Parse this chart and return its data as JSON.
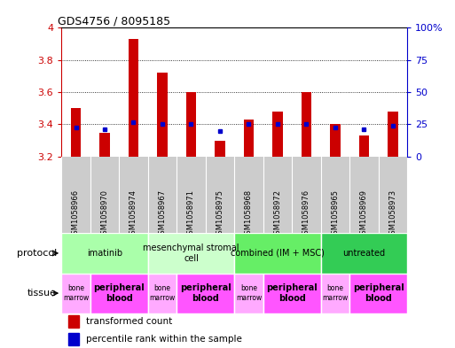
{
  "title": "GDS4756 / 8095185",
  "samples": [
    "GSM1058966",
    "GSM1058970",
    "GSM1058974",
    "GSM1058967",
    "GSM1058971",
    "GSM1058975",
    "GSM1058968",
    "GSM1058972",
    "GSM1058976",
    "GSM1058965",
    "GSM1058969",
    "GSM1058973"
  ],
  "transformed_counts": [
    3.5,
    3.35,
    3.93,
    3.72,
    3.6,
    3.3,
    3.43,
    3.48,
    3.6,
    3.4,
    3.33,
    3.48
  ],
  "percentile_ranks": [
    3.38,
    3.37,
    3.415,
    3.4,
    3.4,
    3.36,
    3.4,
    3.4,
    3.4,
    3.38,
    3.37,
    3.39
  ],
  "ylim": [
    3.2,
    4.0
  ],
  "yticks_left": [
    3.2,
    3.4,
    3.6,
    3.8,
    4.0
  ],
  "ytick_left_labels": [
    "3.2",
    "3.4",
    "3.6",
    "3.8",
    "4"
  ],
  "yticks_right_pct": [
    0,
    25,
    50,
    75,
    100
  ],
  "ytick_right_labels": [
    "0",
    "25",
    "50",
    "75",
    "100%"
  ],
  "bar_color": "#cc0000",
  "dot_color": "#0000cc",
  "bar_width": 0.35,
  "protocols": [
    {
      "label": "imatinib",
      "start": 0,
      "end": 3,
      "color": "#aaffaa"
    },
    {
      "label": "mesenchymal stromal\ncell",
      "start": 3,
      "end": 6,
      "color": "#ccffcc"
    },
    {
      "label": "combined (IM + MSC)",
      "start": 6,
      "end": 9,
      "color": "#66ee66"
    },
    {
      "label": "untreated",
      "start": 9,
      "end": 12,
      "color": "#33cc55"
    }
  ],
  "tissues": [
    {
      "label": "bone\nmarrow",
      "start": 0,
      "end": 1,
      "color": "#ffaaff",
      "bold": false
    },
    {
      "label": "peripheral\nblood",
      "start": 1,
      "end": 3,
      "color": "#ff55ff",
      "bold": true
    },
    {
      "label": "bone\nmarrow",
      "start": 3,
      "end": 4,
      "color": "#ffaaff",
      "bold": false
    },
    {
      "label": "peripheral\nblood",
      "start": 4,
      "end": 6,
      "color": "#ff55ff",
      "bold": true
    },
    {
      "label": "bone\nmarrow",
      "start": 6,
      "end": 7,
      "color": "#ffaaff",
      "bold": false
    },
    {
      "label": "peripheral\nblood",
      "start": 7,
      "end": 9,
      "color": "#ff55ff",
      "bold": true
    },
    {
      "label": "bone\nmarrow",
      "start": 9,
      "end": 10,
      "color": "#ffaaff",
      "bold": false
    },
    {
      "label": "peripheral\nblood",
      "start": 10,
      "end": 12,
      "color": "#ff55ff",
      "bold": true
    }
  ],
  "protocol_row_label": "protocol",
  "tissue_row_label": "tissue",
  "legend_bar_label": "transformed count",
  "legend_dot_label": "percentile rank within the sample",
  "bg_color": "#ffffff",
  "plot_bg": "#e8e8e8",
  "xaxis_bg": "#cccccc"
}
